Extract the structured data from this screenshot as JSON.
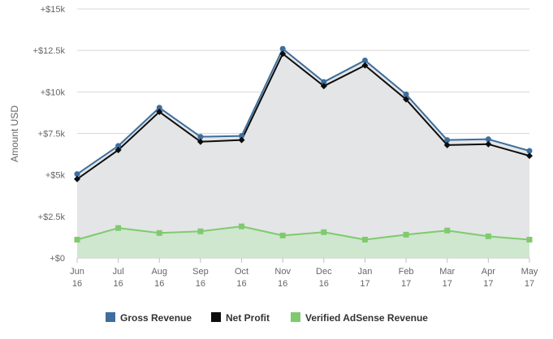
{
  "chart_data": {
    "type": "area",
    "ylabel": "Amount USD",
    "ylim": [
      0,
      15000
    ],
    "yticks": [
      {
        "value": 0,
        "label": "+$0"
      },
      {
        "value": 2500,
        "label": "+$2.5k"
      },
      {
        "value": 5000,
        "label": "+$5k"
      },
      {
        "value": 7500,
        "label": "+$7.5k"
      },
      {
        "value": 10000,
        "label": "+$10k"
      },
      {
        "value": 12500,
        "label": "+$12.5k"
      },
      {
        "value": 15000,
        "label": "+$15k"
      }
    ],
    "categories": [
      {
        "month": "Jun",
        "year": "16"
      },
      {
        "month": "Jul",
        "year": "16"
      },
      {
        "month": "Aug",
        "year": "16"
      },
      {
        "month": "Sep",
        "year": "16"
      },
      {
        "month": "Oct",
        "year": "16"
      },
      {
        "month": "Nov",
        "year": "16"
      },
      {
        "month": "Dec",
        "year": "16"
      },
      {
        "month": "Jan",
        "year": "17"
      },
      {
        "month": "Feb",
        "year": "17"
      },
      {
        "month": "Mar",
        "year": "17"
      },
      {
        "month": "Apr",
        "year": "17"
      },
      {
        "month": "May",
        "year": "17"
      }
    ],
    "grid": true,
    "legend_position": "bottom",
    "series": [
      {
        "name": "Gross Revenue",
        "color": "#3d6e9e",
        "marker": "circle",
        "fill": true,
        "values": [
          5050,
          6750,
          9050,
          7300,
          7350,
          12600,
          10600,
          11900,
          9850,
          7100,
          7150,
          6450
        ]
      },
      {
        "name": "Net Profit",
        "color": "#0d0d0d",
        "marker": "diamond",
        "fill": false,
        "values": [
          4750,
          6500,
          8800,
          7000,
          7100,
          12300,
          10350,
          11600,
          9550,
          6800,
          6850,
          6150
        ]
      },
      {
        "name": "Verified AdSense Revenue",
        "color": "#7fca6f",
        "marker": "square",
        "fill": true,
        "values": [
          1100,
          1800,
          1500,
          1600,
          1900,
          1350,
          1550,
          1100,
          1400,
          1650,
          1300,
          1100
        ]
      }
    ]
  }
}
